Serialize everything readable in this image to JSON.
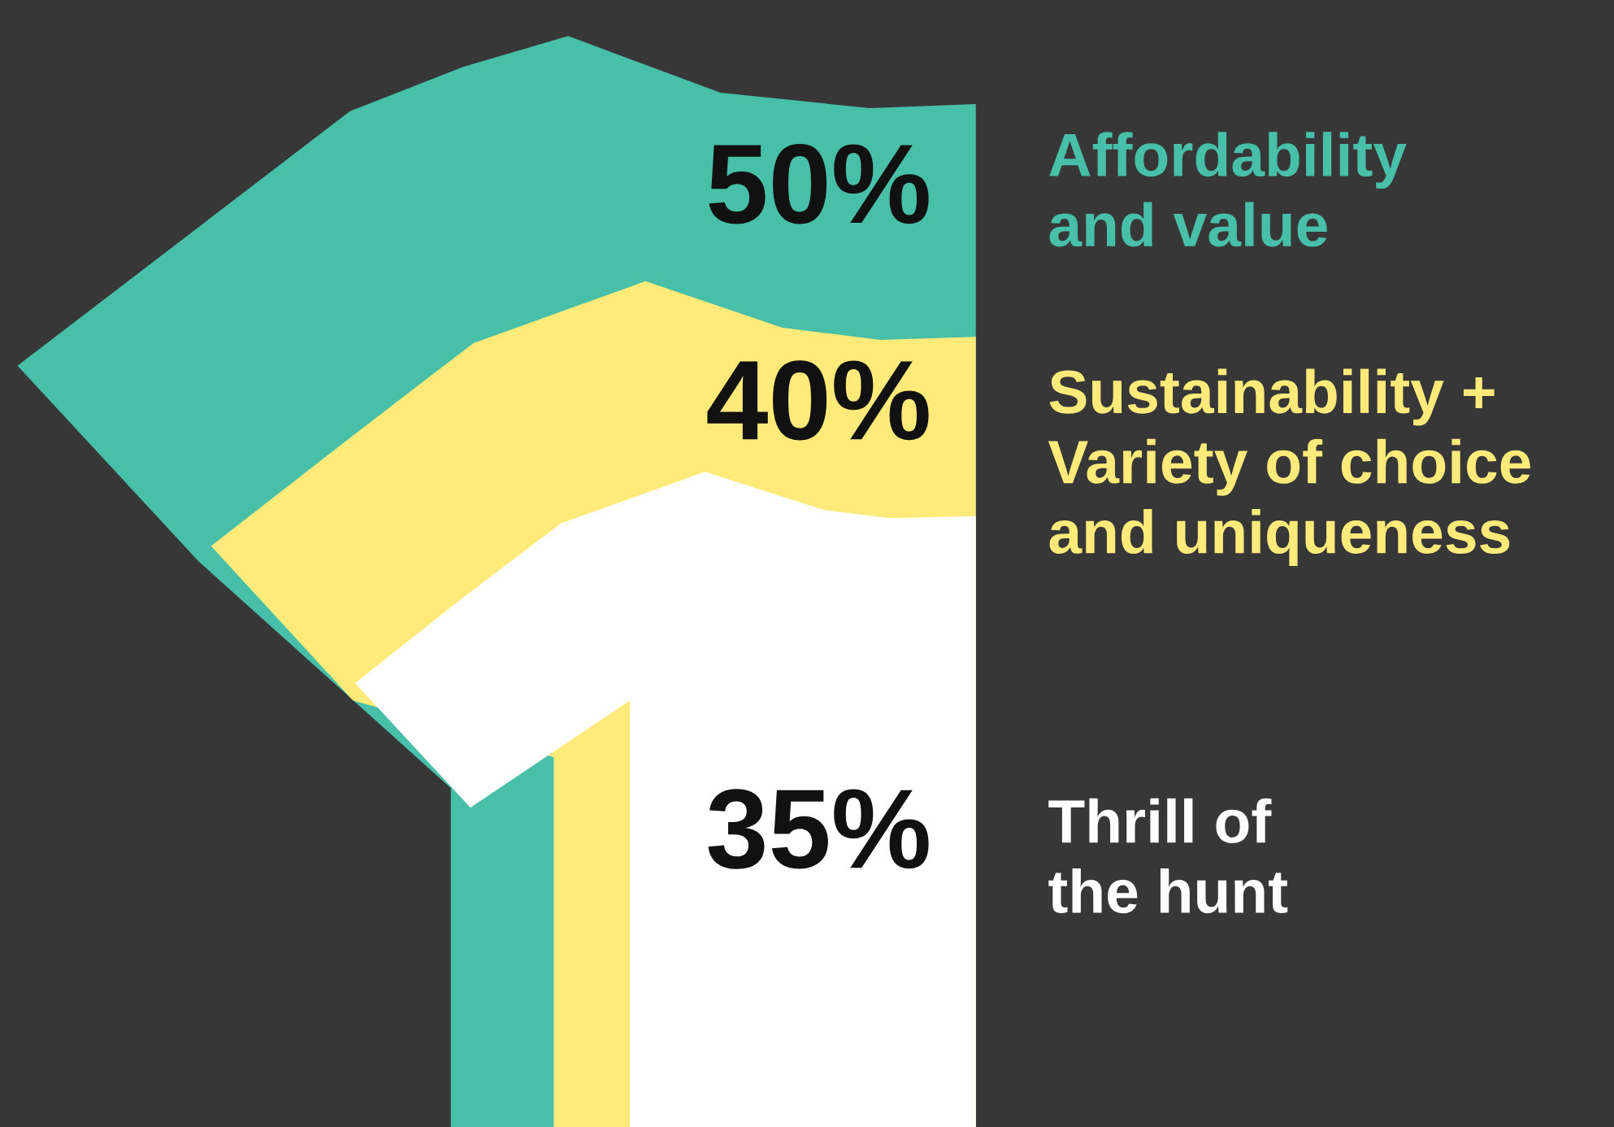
{
  "chart_data": {
    "type": "other",
    "categories": [
      "Affordability\nand value",
      "Sustainability +\nVariety of choice\nand uniqueness",
      "Thrill of\nthe hunt"
    ],
    "values": [
      50,
      40,
      35
    ],
    "value_labels": [
      "50%",
      "40%",
      "35%"
    ],
    "colors": [
      "#48bfa9",
      "#ffea7a",
      "#ffffff"
    ]
  }
}
